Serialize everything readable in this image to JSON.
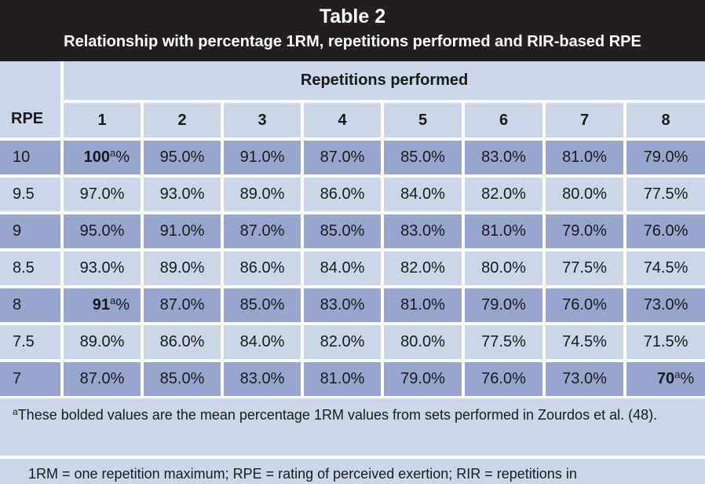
{
  "title": "Table 2",
  "subtitle": "Relationship with percentage 1RM, repetitions performed and RIR-based RPE",
  "table": {
    "rpe_header": "RPE",
    "group_header": "Repetitions performed",
    "columns": [
      "1",
      "2",
      "3",
      "4",
      "5",
      "6",
      "7",
      "8"
    ],
    "rows": [
      {
        "rpe": "10",
        "cells": [
          {
            "value": "100",
            "mark": "a",
            "suffix": "%",
            "bold": true
          },
          {
            "value": "95.0%"
          },
          {
            "value": "91.0%"
          },
          {
            "value": "87.0%"
          },
          {
            "value": "85.0%"
          },
          {
            "value": "83.0%"
          },
          {
            "value": "81.0%"
          },
          {
            "value": "79.0%"
          }
        ]
      },
      {
        "rpe": "9.5",
        "cells": [
          {
            "value": "97.0%"
          },
          {
            "value": "93.0%"
          },
          {
            "value": "89.0%"
          },
          {
            "value": "86.0%"
          },
          {
            "value": "84.0%"
          },
          {
            "value": "82.0%"
          },
          {
            "value": "80.0%"
          },
          {
            "value": "77.5%"
          }
        ]
      },
      {
        "rpe": "9",
        "cells": [
          {
            "value": "95.0%"
          },
          {
            "value": "91.0%"
          },
          {
            "value": "87.0%"
          },
          {
            "value": "85.0%"
          },
          {
            "value": "83.0%"
          },
          {
            "value": "81.0%"
          },
          {
            "value": "79.0%"
          },
          {
            "value": "76.0%"
          }
        ]
      },
      {
        "rpe": "8.5",
        "cells": [
          {
            "value": "93.0%"
          },
          {
            "value": "89.0%"
          },
          {
            "value": "86.0%"
          },
          {
            "value": "84.0%"
          },
          {
            "value": "82.0%"
          },
          {
            "value": "80.0%"
          },
          {
            "value": "77.5%"
          },
          {
            "value": "74.5%"
          }
        ]
      },
      {
        "rpe": "8",
        "cells": [
          {
            "value": "91",
            "mark": "a",
            "suffix": "%",
            "bold": true
          },
          {
            "value": "87.0%"
          },
          {
            "value": "85.0%"
          },
          {
            "value": "83.0%"
          },
          {
            "value": "81.0%"
          },
          {
            "value": "79.0%"
          },
          {
            "value": "76.0%"
          },
          {
            "value": "73.0%"
          }
        ]
      },
      {
        "rpe": "7.5",
        "cells": [
          {
            "value": "89.0%"
          },
          {
            "value": "86.0%"
          },
          {
            "value": "84.0%"
          },
          {
            "value": "82.0%"
          },
          {
            "value": "80.0%"
          },
          {
            "value": "77.5%"
          },
          {
            "value": "74.5%"
          },
          {
            "value": "71.5%"
          }
        ]
      },
      {
        "rpe": "7",
        "cells": [
          {
            "value": "87.0%"
          },
          {
            "value": "85.0%"
          },
          {
            "value": "83.0%"
          },
          {
            "value": "81.0%"
          },
          {
            "value": "79.0%"
          },
          {
            "value": "76.0%"
          },
          {
            "value": "73.0%"
          },
          {
            "value": "70",
            "mark": "a",
            "suffix": "%",
            "bold": true
          }
        ]
      }
    ]
  },
  "footnotes": {
    "a_mark": "a",
    "a_text": "These bolded values are the mean percentage 1RM values from sets performed in Zourdos et al. (48).",
    "abbreviations": "1RM = one repetition maximum; RPE = rating of perceived exertion; RIR = repetitions in"
  },
  "colors": {
    "title_bg": "#231f20",
    "panel_bg": "#cdd5e8",
    "band_dark": "#98a6cf",
    "grid_lines": "#ffffff"
  }
}
